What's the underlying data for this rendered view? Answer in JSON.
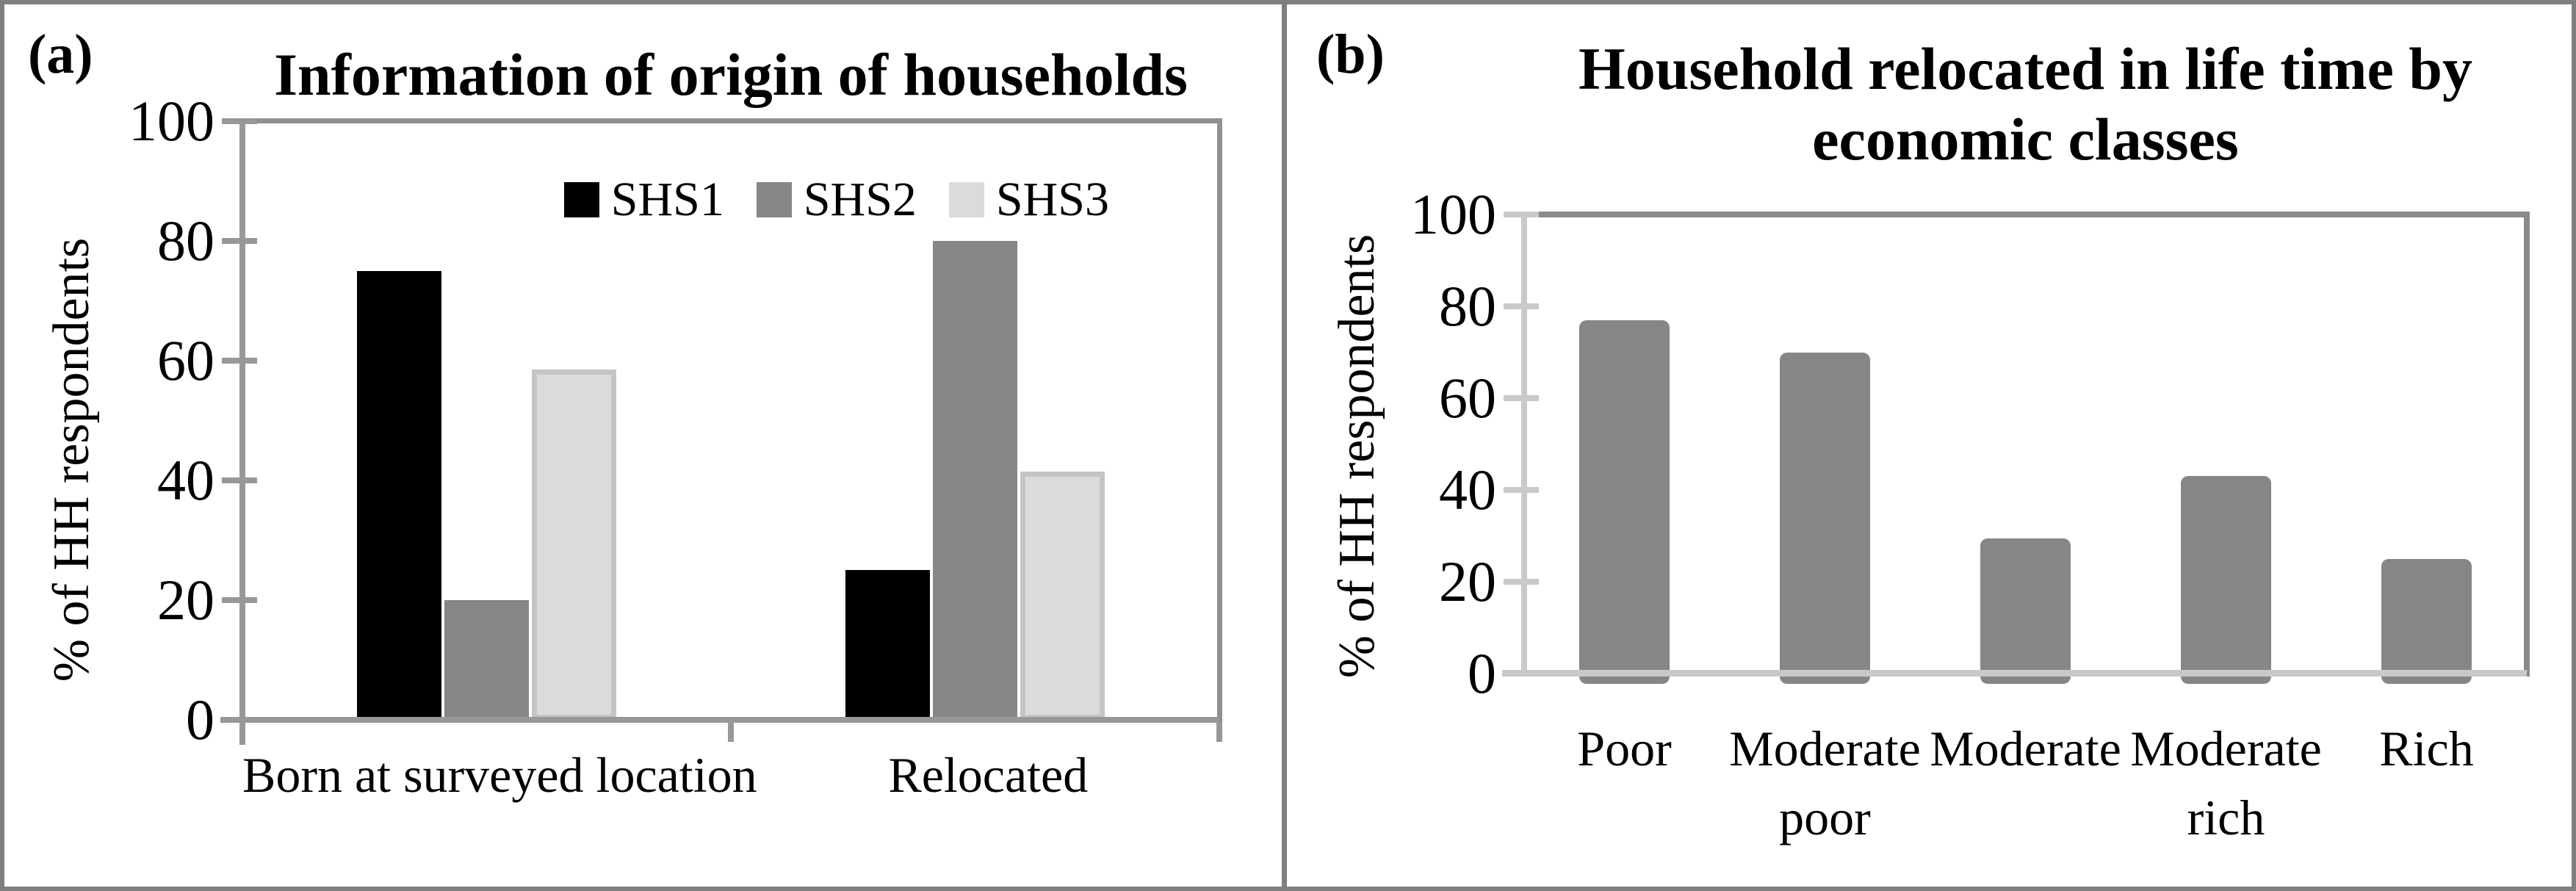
{
  "figure": {
    "border_color": "#7f7f7f",
    "background": "#ffffff"
  },
  "panels": {
    "a": {
      "label": "(a)",
      "title": "Information of origin of households",
      "y_axis_label": "% of HH respondents"
    },
    "b": {
      "label": "(b)",
      "title_line1": "Household relocated in life time by",
      "title_line2": "economic classes",
      "y_axis_label": "% of HH respondents"
    }
  },
  "chart_data": [
    {
      "id": "a",
      "type": "bar",
      "title": "Information of origin of households",
      "xlabel": "",
      "ylabel": "% of HH respondents",
      "ylim": [
        0,
        100
      ],
      "yticks": [
        0,
        20,
        40,
        60,
        80,
        100
      ],
      "grid": false,
      "legend_position": "top-right",
      "categories": [
        "Born at surveyed location",
        "Relocated"
      ],
      "series": [
        {
          "name": "SHS1",
          "color": "#000000",
          "values": [
            75,
            25
          ]
        },
        {
          "name": "SHS2",
          "color": "#868686",
          "values": [
            20,
            80
          ]
        },
        {
          "name": "SHS3",
          "color": "#dbdbdb",
          "border_color": "#c4c4c4",
          "values": [
            58.5,
            41.5
          ]
        }
      ]
    },
    {
      "id": "b",
      "type": "bar",
      "title": "Household relocated in life time by economic classes",
      "xlabel": "",
      "ylabel": "% of HH respondents",
      "ylim": [
        0,
        100
      ],
      "yticks": [
        0,
        20,
        40,
        60,
        80,
        100
      ],
      "grid": false,
      "legend_position": "none",
      "categories": [
        "Poor",
        "Moderate poor",
        "Moderate",
        "Moderate rich",
        "Rich"
      ],
      "series": [
        {
          "name": "% of HH respondents",
          "color": "#868686",
          "values": [
            77,
            70,
            29.5,
            43,
            25
          ]
        }
      ]
    }
  ]
}
